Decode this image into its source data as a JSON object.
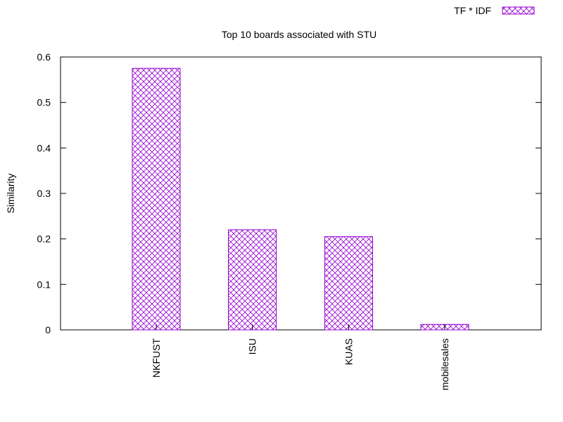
{
  "chart_data": {
    "type": "bar",
    "title": "Top 10 boards associated with STU",
    "xlabel": "",
    "ylabel": "Similarity",
    "categories": [
      "NKFUST",
      "ISU",
      "KUAS",
      "mobilesales"
    ],
    "series": [
      {
        "name": "TF * IDF",
        "values": [
          0.575,
          0.22,
          0.205,
          0.012
        ]
      }
    ],
    "ylim": [
      0,
      0.6
    ],
    "yticks": [
      "0",
      "0.1",
      "0.2",
      "0.3",
      "0.4",
      "0.5",
      "0.6"
    ],
    "legend_position": "top-right",
    "grid": false,
    "bar_color": "#9400d3",
    "bar_fill": "crosshatch"
  }
}
